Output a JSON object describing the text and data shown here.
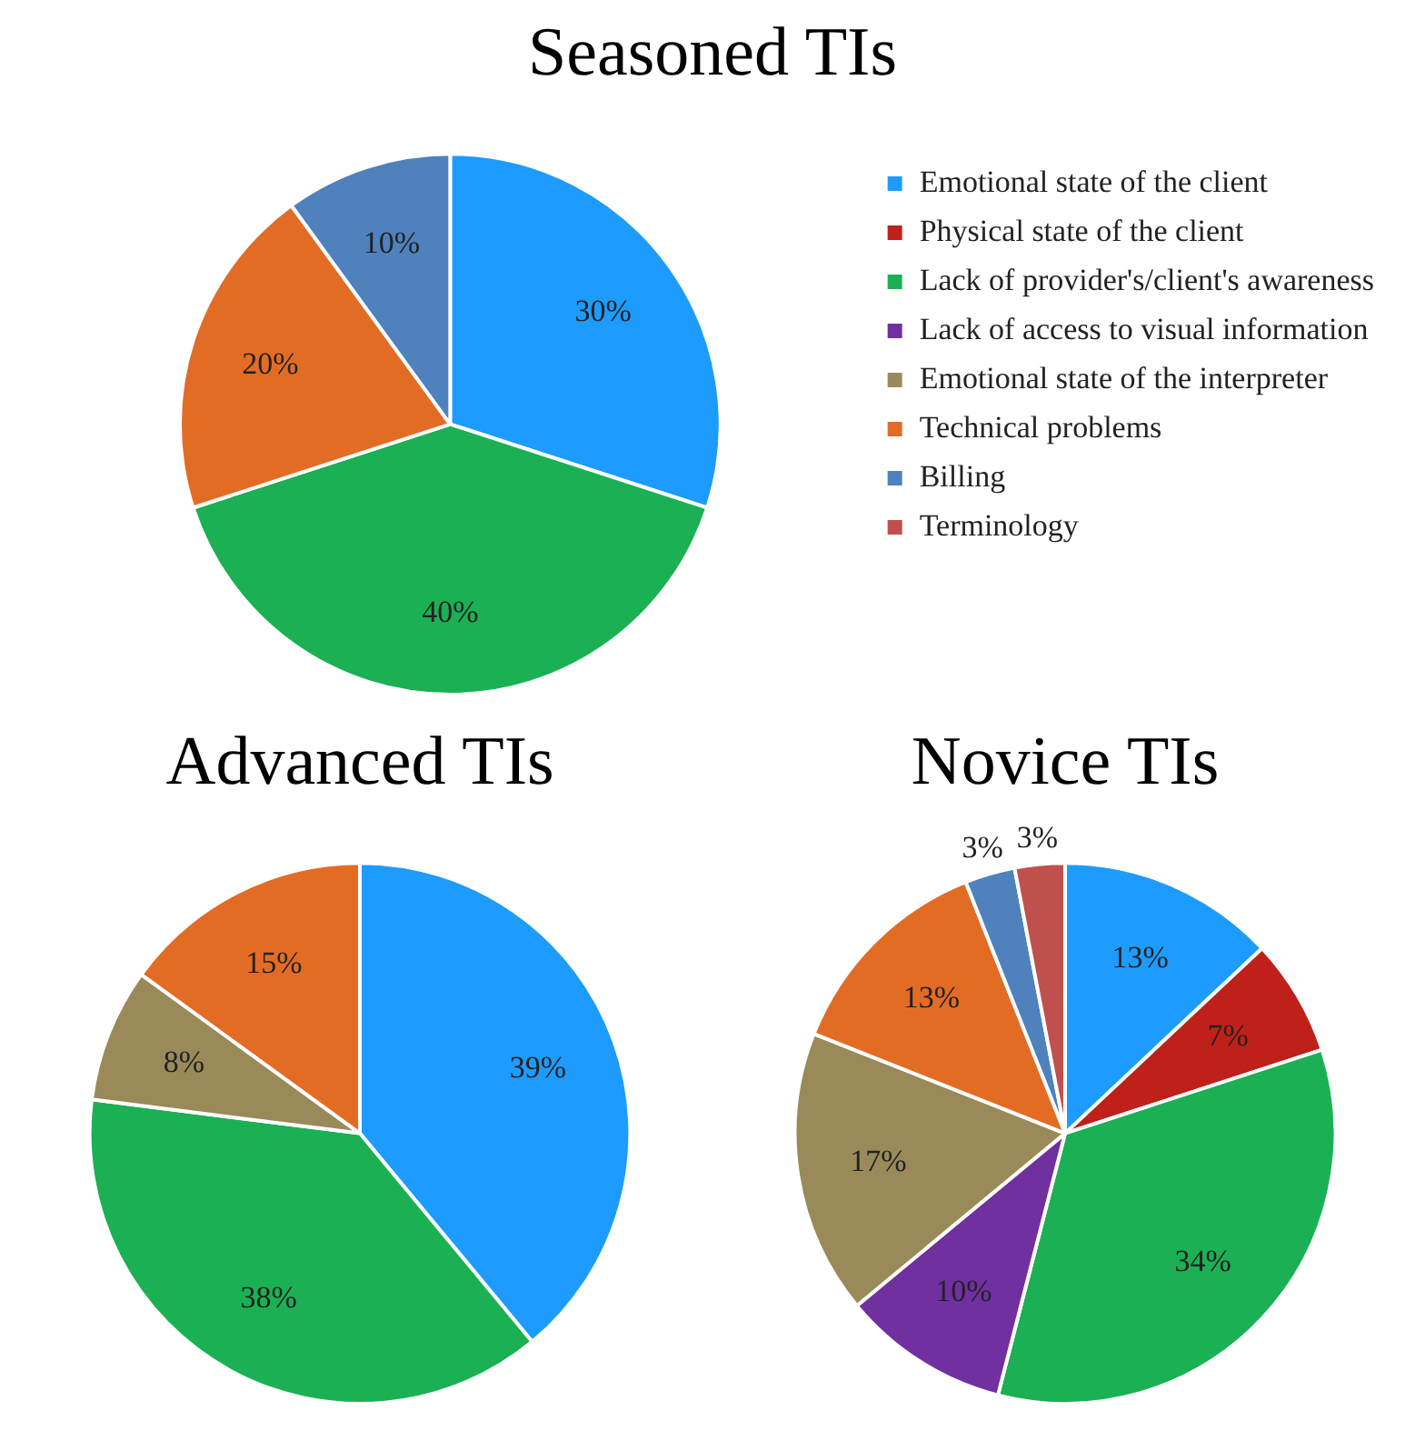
{
  "chart_data": [
    {
      "type": "pie",
      "title": "Seasoned TIs",
      "legend": "right",
      "categories": [
        "Emotional state of the client",
        "Physical state of the client",
        "Lack of provider's/client's awareness",
        "Lack of access to visual information",
        "Emotional state of the interpreter",
        "Technical problems",
        "Billing",
        "Terminology"
      ],
      "values": [
        30,
        0,
        40,
        0,
        0,
        20,
        10,
        0
      ],
      "value_labels": [
        "30%",
        null,
        "40%",
        null,
        null,
        "20%",
        "10%",
        null
      ],
      "colors": [
        "#1e9bff",
        "#c0201a",
        "#1bb054",
        "#7030a0",
        "#9a8a5a",
        "#e36c25",
        "#4f81bd",
        "#c0504d"
      ]
    },
    {
      "type": "pie",
      "title": "Advanced TIs",
      "categories": [
        null,
        null,
        null,
        null,
        null,
        null,
        null,
        null
      ],
      "values": [
        39,
        0,
        38,
        0,
        8,
        15,
        0,
        0
      ],
      "value_labels": [
        "39%",
        null,
        "38%",
        null,
        "8%",
        "15%",
        null,
        null
      ],
      "colors": [
        "#1e9bff",
        "#c0201a",
        "#1bb054",
        "#7030a0",
        "#9a8a5a",
        "#e36c25",
        "#4f81bd",
        "#c0504d"
      ]
    },
    {
      "type": "pie",
      "title": "Novice TIs",
      "categories": [
        null,
        null,
        null,
        null,
        null,
        null,
        null,
        null
      ],
      "values": [
        13,
        7,
        34,
        10,
        17,
        13,
        3,
        3
      ],
      "value_labels": [
        "13%",
        "7%",
        "34%",
        "10%",
        "17%",
        "13%",
        "3%",
        "3%"
      ],
      "colors": [
        "#1e9bff",
        "#c0201a",
        "#1bb054",
        "#7030a0",
        "#9a8a5a",
        "#e36c25",
        "#4f81bd",
        "#c0504d"
      ]
    }
  ]
}
